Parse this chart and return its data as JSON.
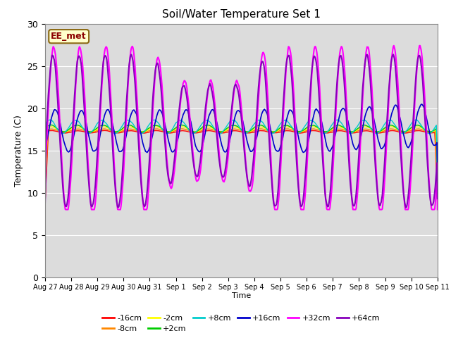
{
  "title": "Soil/Water Temperature Set 1",
  "xlabel": "Time",
  "ylabel": "Temperature (C)",
  "annotation": "EE_met",
  "ylim": [
    0,
    30
  ],
  "x_ticks_labels": [
    "Aug 27",
    "Aug 28",
    "Aug 29",
    "Aug 30",
    "Aug 31",
    "Sep 1",
    "Sep 2",
    "Sep 3",
    "Sep 4",
    "Sep 5",
    "Sep 6",
    "Sep 7",
    "Sep 8",
    "Sep 9",
    "Sep 10",
    "Sep 11"
  ],
  "series": [
    {
      "label": "-16cm",
      "color": "#ff0000"
    },
    {
      "label": "-8cm",
      "color": "#ff8800"
    },
    {
      "label": "-2cm",
      "color": "#ffff00"
    },
    {
      "label": "+2cm",
      "color": "#00cc00"
    },
    {
      "label": "+8cm",
      "color": "#00cccc"
    },
    {
      "label": "+16cm",
      "color": "#0000cc"
    },
    {
      "label": "+32cm",
      "color": "#ff00ff"
    },
    {
      "label": "+64cm",
      "color": "#8800bb"
    }
  ],
  "bg_color": "#dcdcdc",
  "fig_bg_color": "#ffffff",
  "legend_ncol1": 6,
  "legend_ncol2": 2
}
